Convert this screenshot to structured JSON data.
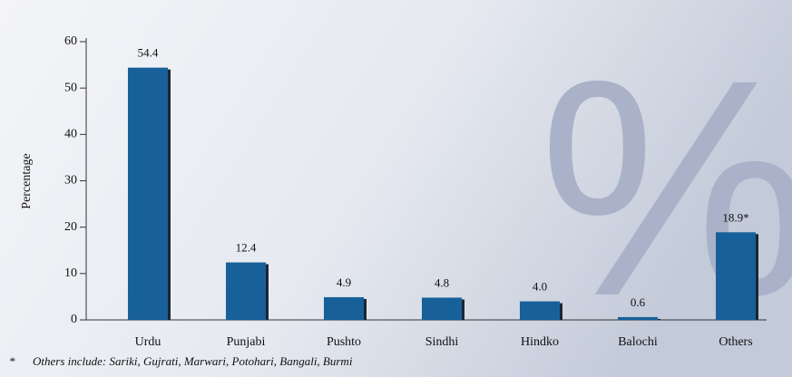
{
  "chart_data": {
    "type": "bar",
    "y_label": "Percentage",
    "watermark": "%",
    "categories": [
      "Urdu",
      "Punjabi",
      "Pushto",
      "Sindhi",
      "Hindko",
      "Balochi",
      "Others"
    ],
    "values": [
      54.4,
      12.4,
      4.9,
      4.8,
      4.0,
      0.6,
      18.9
    ],
    "value_labels": [
      "54.4",
      "12.4",
      "4.9",
      "4.8",
      "4.0",
      "0.6",
      "18.9*"
    ],
    "color": "#17609a",
    "ylim": [
      0,
      60
    ],
    "yticks": [
      0,
      10,
      20,
      30,
      40,
      50,
      60
    ],
    "footnote": {
      "marker": "*",
      "text": "Others include: Sariki, Gujrati, Marwari, Potohari, Bangali, Burmi"
    }
  }
}
